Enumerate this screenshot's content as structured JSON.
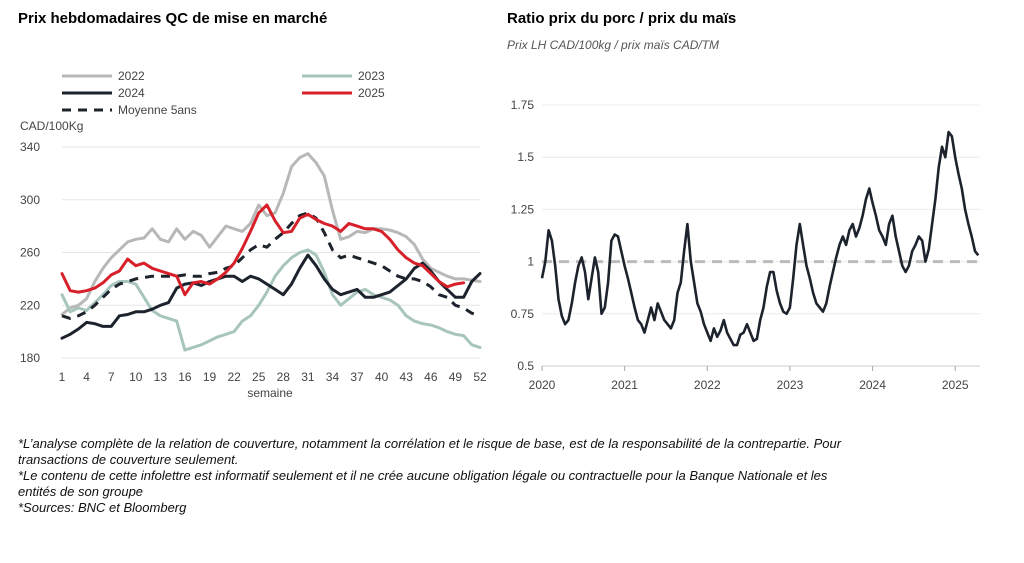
{
  "left_chart": {
    "title": "Prix hebdomadaires QC de mise en marché"
  },
  "right_chart": {
    "title": "Ratio prix du porc / prix du maïs",
    "subtitle": "Prix LH CAD/100kg / prix maïs CAD/TM"
  },
  "footnotes": [
    "*L’analyse complète de la relation de couverture, notamment la corrélation et le risque de base, est de la responsabilité de la contrepartie. Pour transactions de couverture seulement.",
    "*Le contenu de cette infolettre est informatif seulement et il ne crée aucune obligation légale ou contractuelle pour la Banque Nationale et les entités de son groupe",
    "*Sources: BNC et Bloomberg"
  ],
  "chart_data": [
    {
      "type": "line",
      "title": "Prix hebdomadaires QC de mise en marché",
      "ylabel": "CAD/100Kg",
      "xlabel": "semaine",
      "xlim": [
        1,
        52
      ],
      "ylim": [
        180,
        340
      ],
      "x_ticks": [
        "1",
        "4",
        "7",
        "10",
        "13",
        "16",
        "19",
        "22",
        "25",
        "28",
        "31",
        "34",
        "37",
        "40",
        "43",
        "46",
        "49",
        "52"
      ],
      "y_ticks": [
        "180",
        "220",
        "260",
        "300",
        "340"
      ],
      "grid": "horizontal",
      "legend_position": "top",
      "series": [
        {
          "name": "2022",
          "color": "#b8b8b8",
          "dash": "solid",
          "x": [
            1,
            2,
            3,
            4,
            5,
            6,
            7,
            8,
            9,
            10,
            11,
            12,
            13,
            14,
            15,
            16,
            17,
            18,
            19,
            20,
            21,
            22,
            23,
            24,
            25,
            26,
            27,
            28,
            29,
            30,
            31,
            32,
            33,
            34,
            35,
            36,
            37,
            38,
            39,
            40,
            41,
            42,
            43,
            44,
            45,
            46,
            47,
            48,
            49,
            50,
            51,
            52
          ],
          "values": [
            213,
            218,
            220,
            225,
            238,
            248,
            256,
            262,
            268,
            270,
            271,
            278,
            270,
            268,
            278,
            270,
            276,
            273,
            264,
            272,
            280,
            278,
            276,
            282,
            296,
            288,
            290,
            305,
            325,
            332,
            335,
            328,
            318,
            292,
            270,
            272,
            276,
            275,
            278,
            278,
            277,
            275,
            272,
            266,
            255,
            248,
            245,
            242,
            240,
            240,
            239,
            238
          ]
        },
        {
          "name": "2023",
          "color": "#a7c5bd",
          "dash": "solid",
          "x": [
            1,
            2,
            3,
            4,
            5,
            6,
            7,
            8,
            9,
            10,
            11,
            12,
            13,
            14,
            15,
            16,
            17,
            18,
            19,
            20,
            21,
            22,
            23,
            24,
            25,
            26,
            27,
            28,
            29,
            30,
            31,
            32,
            33,
            34,
            35,
            36,
            37,
            38,
            39,
            40,
            41,
            42,
            43,
            44,
            45,
            46,
            47,
            48,
            49,
            50,
            51,
            52
          ],
          "values": [
            228,
            215,
            218,
            216,
            222,
            228,
            235,
            238,
            238,
            236,
            226,
            216,
            212,
            210,
            208,
            186,
            188,
            190,
            193,
            196,
            198,
            200,
            208,
            212,
            220,
            230,
            242,
            250,
            256,
            260,
            262,
            258,
            245,
            228,
            220,
            225,
            230,
            232,
            228,
            226,
            224,
            220,
            212,
            208,
            206,
            205,
            203,
            200,
            198,
            197,
            190,
            188
          ]
        },
        {
          "name": "2024",
          "color": "#1d232d",
          "dash": "solid",
          "x": [
            1,
            2,
            3,
            4,
            5,
            6,
            7,
            8,
            9,
            10,
            11,
            12,
            13,
            14,
            15,
            16,
            17,
            18,
            19,
            20,
            21,
            22,
            23,
            24,
            25,
            26,
            27,
            28,
            29,
            30,
            31,
            32,
            33,
            34,
            35,
            36,
            37,
            38,
            39,
            40,
            41,
            42,
            43,
            44,
            45,
            46,
            47,
            48,
            49,
            50,
            51,
            52
          ],
          "values": [
            195,
            198,
            202,
            207,
            206,
            204,
            204,
            212,
            213,
            215,
            215,
            217,
            220,
            222,
            233,
            236,
            237,
            235,
            238,
            240,
            242,
            242,
            238,
            242,
            240,
            236,
            232,
            228,
            236,
            248,
            258,
            250,
            240,
            232,
            228,
            230,
            232,
            226,
            226,
            228,
            230,
            235,
            240,
            248,
            252,
            246,
            238,
            232,
            226,
            226,
            238,
            244
          ]
        },
        {
          "name": "2025",
          "color": "#d7202a",
          "dash": "solid",
          "x": [
            1,
            2,
            3,
            4,
            5,
            6,
            7,
            8,
            9,
            10,
            11,
            12,
            13,
            14,
            15,
            16,
            17,
            18,
            19,
            20,
            21,
            22,
            23,
            24,
            25,
            26,
            27,
            28,
            29,
            30,
            31,
            32,
            33,
            34,
            35,
            36,
            37,
            38,
            39,
            40,
            41,
            42,
            43,
            44,
            45,
            46,
            47,
            48,
            49,
            50
          ],
          "values": [
            244,
            231,
            230,
            231,
            233,
            237,
            243,
            246,
            255,
            250,
            252,
            248,
            246,
            244,
            242,
            228,
            237,
            238,
            236,
            240,
            245,
            252,
            263,
            276,
            290,
            296,
            284,
            275,
            276,
            286,
            289,
            285,
            282,
            280,
            276,
            282,
            280,
            278,
            278,
            276,
            270,
            262,
            256,
            252,
            250,
            244,
            238,
            234,
            236,
            237
          ]
        },
        {
          "name": "Moyenne 5ans",
          "color": "#1d232d",
          "dash": "dashed",
          "x": [
            1,
            2,
            3,
            4,
            5,
            6,
            7,
            8,
            9,
            10,
            11,
            12,
            13,
            14,
            15,
            16,
            17,
            18,
            19,
            20,
            21,
            22,
            23,
            24,
            25,
            26,
            27,
            28,
            29,
            30,
            31,
            32,
            33,
            34,
            35,
            36,
            37,
            38,
            39,
            40,
            41,
            42,
            43,
            44,
            45,
            46,
            47,
            48,
            49,
            50,
            51,
            52
          ],
          "values": [
            212,
            210,
            212,
            215,
            220,
            226,
            232,
            236,
            238,
            240,
            241,
            242,
            242,
            242,
            242,
            243,
            242,
            242,
            244,
            245,
            248,
            250,
            256,
            262,
            266,
            264,
            270,
            275,
            282,
            288,
            290,
            286,
            275,
            262,
            256,
            258,
            256,
            254,
            252,
            250,
            246,
            242,
            240,
            240,
            238,
            234,
            228,
            226,
            220,
            218,
            214,
            212
          ]
        }
      ]
    },
    {
      "type": "line",
      "title": "Ratio prix du porc / prix du maïs",
      "subtitle": "Prix LH CAD/100kg / prix maïs CAD/TM",
      "xlim": [
        2020.0,
        2025.3
      ],
      "ylim": [
        0.5,
        1.75
      ],
      "x_ticks": [
        "2020",
        "2021",
        "2022",
        "2023",
        "2024",
        "2025"
      ],
      "y_ticks": [
        "0.5",
        "0.75",
        "1",
        "1.25",
        "1.5",
        "1.75"
      ],
      "grid": "horizontal",
      "reference_line": {
        "value": 1.0,
        "color": "#bbbbbb",
        "dash": "dashed"
      },
      "series": [
        {
          "color": "#1d232d",
          "x": [
            2020.0,
            2020.04,
            2020.08,
            2020.12,
            2020.16,
            2020.2,
            2020.24,
            2020.28,
            2020.32,
            2020.36,
            2020.4,
            2020.44,
            2020.48,
            2020.52,
            2020.56,
            2020.6,
            2020.64,
            2020.68,
            2020.72,
            2020.76,
            2020.8,
            2020.84,
            2020.88,
            2020.92,
            2020.96,
            2021.0,
            2021.04,
            2021.08,
            2021.12,
            2021.16,
            2021.2,
            2021.24,
            2021.28,
            2021.32,
            2021.36,
            2021.4,
            2021.44,
            2021.48,
            2021.52,
            2021.56,
            2021.6,
            2021.64,
            2021.68,
            2021.72,
            2021.76,
            2021.8,
            2021.84,
            2021.88,
            2021.92,
            2021.96,
            2022.0,
            2022.04,
            2022.08,
            2022.12,
            2022.16,
            2022.2,
            2022.24,
            2022.28,
            2022.32,
            2022.36,
            2022.4,
            2022.44,
            2022.48,
            2022.52,
            2022.56,
            2022.6,
            2022.64,
            2022.68,
            2022.72,
            2022.76,
            2022.8,
            2022.84,
            2022.88,
            2022.92,
            2022.96,
            2023.0,
            2023.04,
            2023.08,
            2023.12,
            2023.16,
            2023.2,
            2023.24,
            2023.28,
            2023.32,
            2023.36,
            2023.4,
            2023.44,
            2023.48,
            2023.52,
            2023.56,
            2023.6,
            2023.64,
            2023.68,
            2023.72,
            2023.76,
            2023.8,
            2023.84,
            2023.88,
            2023.92,
            2023.96,
            2024.0,
            2024.04,
            2024.08,
            2024.12,
            2024.16,
            2024.2,
            2024.24,
            2024.28,
            2024.32,
            2024.36,
            2024.4,
            2024.44,
            2024.48,
            2024.52,
            2024.56,
            2024.6,
            2024.64,
            2024.68,
            2024.72,
            2024.76,
            2024.8,
            2024.84,
            2024.88,
            2024.92,
            2024.96,
            2025.0,
            2025.04,
            2025.08,
            2025.12,
            2025.16,
            2025.2,
            2025.24,
            2025.28
          ],
          "values": [
            0.92,
            1.0,
            1.15,
            1.1,
            0.98,
            0.82,
            0.74,
            0.7,
            0.72,
            0.8,
            0.9,
            0.98,
            1.02,
            0.95,
            0.82,
            0.92,
            1.02,
            0.95,
            0.75,
            0.78,
            0.9,
            1.1,
            1.13,
            1.12,
            1.05,
            0.98,
            0.92,
            0.85,
            0.78,
            0.72,
            0.7,
            0.66,
            0.72,
            0.78,
            0.72,
            0.8,
            0.76,
            0.72,
            0.7,
            0.68,
            0.72,
            0.85,
            0.9,
            1.05,
            1.18,
            1.0,
            0.9,
            0.8,
            0.76,
            0.7,
            0.66,
            0.62,
            0.68,
            0.64,
            0.67,
            0.72,
            0.66,
            0.63,
            0.6,
            0.6,
            0.65,
            0.66,
            0.7,
            0.66,
            0.62,
            0.63,
            0.72,
            0.78,
            0.88,
            0.95,
            0.95,
            0.86,
            0.8,
            0.76,
            0.75,
            0.78,
            0.92,
            1.08,
            1.18,
            1.08,
            0.98,
            0.92,
            0.85,
            0.8,
            0.78,
            0.76,
            0.8,
            0.88,
            0.95,
            1.02,
            1.08,
            1.12,
            1.08,
            1.15,
            1.18,
            1.12,
            1.16,
            1.22,
            1.3,
            1.35,
            1.28,
            1.22,
            1.15,
            1.12,
            1.08,
            1.18,
            1.22,
            1.12,
            1.05,
            0.98,
            0.95,
            0.98,
            1.05,
            1.08,
            1.12,
            1.1,
            1.0,
            1.06,
            1.18,
            1.3,
            1.45,
            1.55,
            1.5,
            1.62,
            1.6,
            1.5,
            1.42,
            1.35,
            1.25,
            1.18,
            1.12,
            1.05,
            1.03
          ]
        }
      ]
    }
  ]
}
